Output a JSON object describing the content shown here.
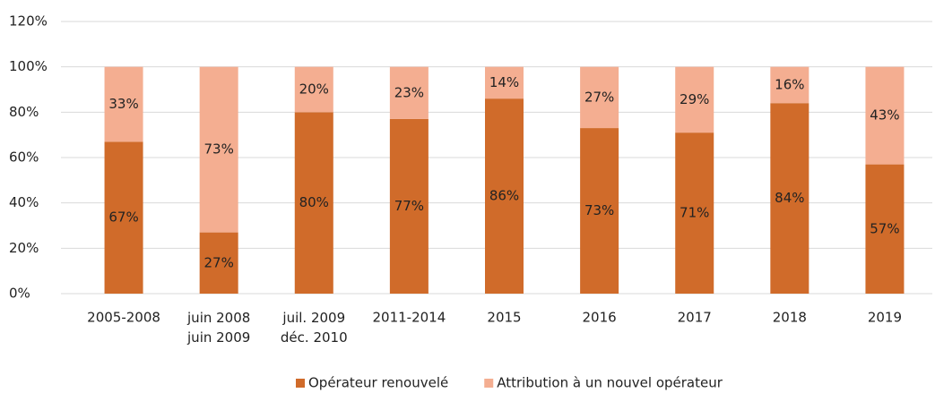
{
  "chart_data": {
    "type": "stacked_bar",
    "categories": [
      "2005-2008",
      "juin 2008\njuin 2009",
      "juil. 2009\ndéc. 2010",
      "2011-2014",
      "2015",
      "2016",
      "2017",
      "2018",
      "2019"
    ],
    "series": [
      {
        "name": "Opérateur renouvelé",
        "color": "#d06b2a",
        "values": [
          67,
          27,
          80,
          77,
          86,
          73,
          71,
          84,
          57
        ],
        "value_labels": [
          "67%",
          "27%",
          "80%",
          "77%",
          "86%",
          "73%",
          "71%",
          "84%",
          "57%"
        ]
      },
      {
        "name": "Attribution à un nouvel opérateur",
        "color": "#f4ae91",
        "values": [
          33,
          73,
          20,
          23,
          14,
          27,
          29,
          16,
          43
        ],
        "value_labels": [
          "33%",
          "73%",
          "20%",
          "23%",
          "14%",
          "27%",
          "29%",
          "16%",
          "43%"
        ]
      }
    ],
    "ylim": [
      0,
      120
    ],
    "yticks": [
      {
        "value": 0,
        "label": "0%"
      },
      {
        "value": 20,
        "label": "20%"
      },
      {
        "value": 40,
        "label": "40%"
      },
      {
        "value": 60,
        "label": "60%"
      },
      {
        "value": 80,
        "label": "80%"
      },
      {
        "value": 100,
        "label": "100%"
      },
      {
        "value": 120,
        "label": "120%"
      }
    ],
    "grid": true,
    "legend": "bottom"
  }
}
